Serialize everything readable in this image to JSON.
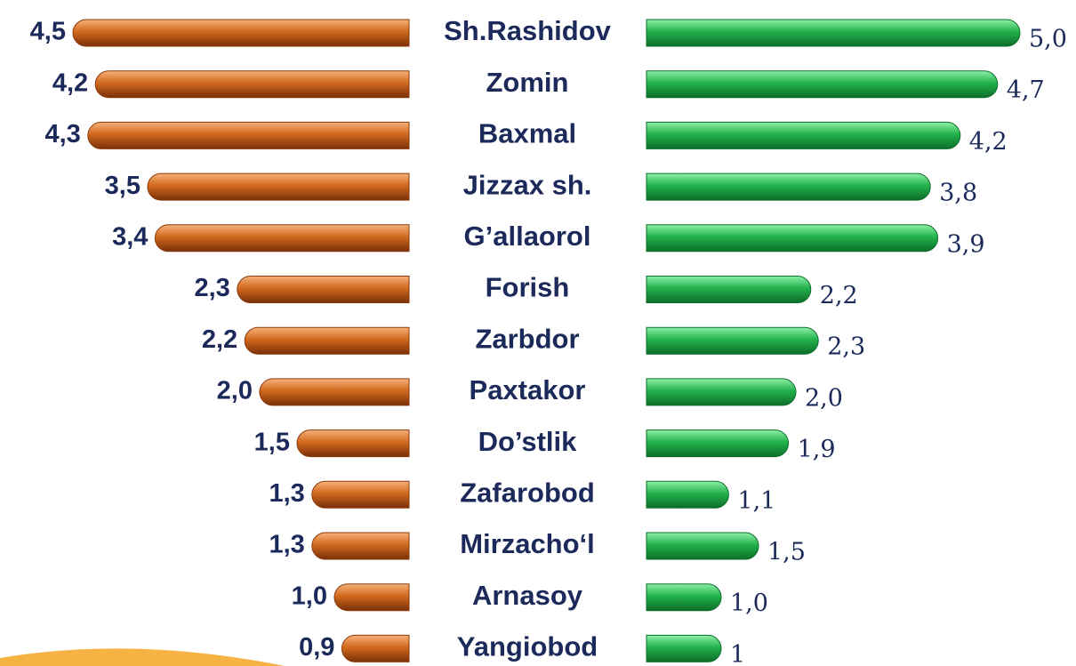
{
  "chart_data": {
    "type": "bar",
    "categories": [
      "Sh.Rashidov",
      "Zomin",
      "Baxmal",
      "Jizzax sh.",
      "G’allaorol",
      "Forish",
      "Zarbdor",
      "Paxtakor",
      "Do’stlik",
      "Zafarobod",
      "Mirzacho‘l",
      "Arnasoy",
      "Yangiobod"
    ],
    "series": [
      {
        "color": "#d2691e",
        "values": [
          4.5,
          4.2,
          4.3,
          3.5,
          3.4,
          2.3,
          2.2,
          2.0,
          1.5,
          1.3,
          1.3,
          1.0,
          0.9
        ],
        "value_labels": [
          "4,5",
          "4,2",
          "4,3",
          "3,5",
          "3,4",
          "2,3",
          "2,2",
          "2,0",
          "1,5",
          "1,3",
          "1,3",
          "1,0",
          "0,9"
        ]
      },
      {
        "color": "#22b24c",
        "values": [
          5.0,
          4.7,
          4.2,
          3.8,
          3.9,
          2.2,
          2.3,
          2.0,
          1.9,
          1.1,
          1.5,
          1.0,
          1
        ],
        "value_labels": [
          "5,0",
          "4,7",
          "4,2",
          "3,8",
          "3,9",
          "2,2",
          "2,3",
          "2,0",
          "1,9",
          "1,1",
          "1,5",
          "1,0",
          "1"
        ]
      }
    ]
  }
}
